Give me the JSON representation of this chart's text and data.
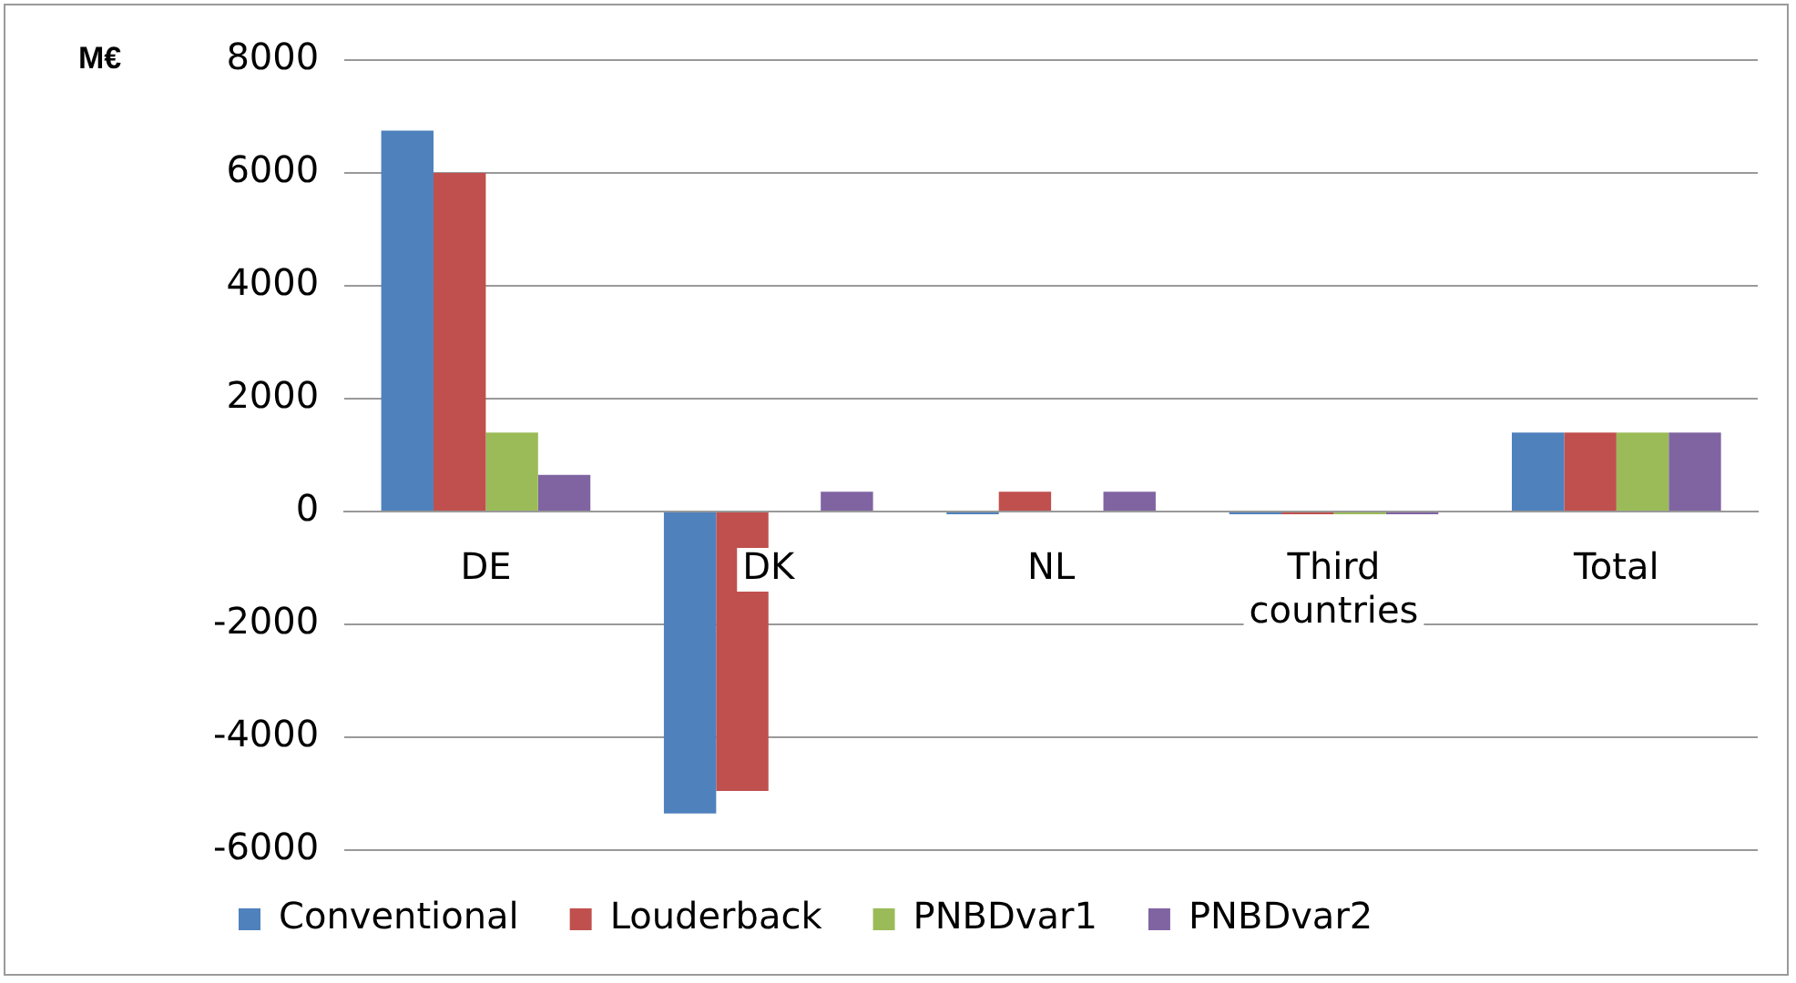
{
  "chart_data": {
    "type": "bar",
    "ylabel": "M€",
    "categories": [
      "DE",
      "DK",
      "NL",
      "Third countries",
      "Total"
    ],
    "series": [
      {
        "name": "Conventional",
        "color": "#4f81bd",
        "values": [
          6750,
          -5350,
          -50,
          -50,
          1400
        ]
      },
      {
        "name": "Louderback",
        "color": "#c0504d",
        "values": [
          6000,
          -4950,
          350,
          -50,
          1400
        ]
      },
      {
        "name": "PNBDvar1",
        "color": "#9bbb59",
        "values": [
          1400,
          0,
          0,
          -50,
          1400
        ]
      },
      {
        "name": "PNBDvar2",
        "color": "#8064a2",
        "values": [
          650,
          350,
          350,
          -50,
          1400
        ]
      }
    ],
    "ylim": [
      -6000,
      8000
    ],
    "yticks": [
      -6000,
      -4000,
      -2000,
      0,
      2000,
      4000,
      6000,
      8000
    ],
    "grid": "y",
    "legend": "bottom"
  }
}
